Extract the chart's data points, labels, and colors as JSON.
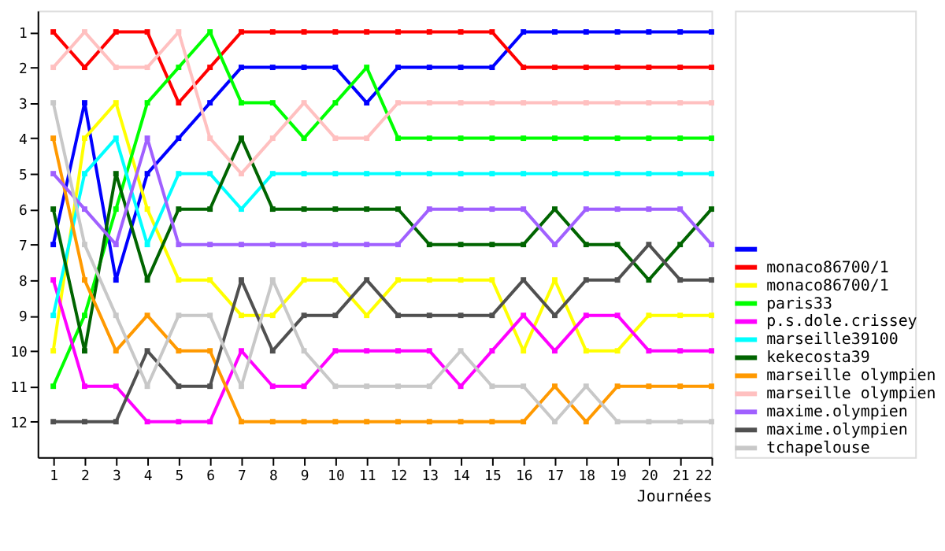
{
  "chart_data": {
    "type": "line",
    "xlabel": "Journées",
    "x": [
      1,
      2,
      3,
      4,
      5,
      6,
      7,
      8,
      9,
      10,
      11,
      12,
      13,
      14,
      15,
      16,
      17,
      18,
      19,
      20,
      21,
      22
    ],
    "xlim": [
      0.5,
      22
    ],
    "xticks": [
      1,
      2,
      3,
      4,
      5,
      6,
      7,
      8,
      9,
      10,
      11,
      12,
      13,
      14,
      15,
      16,
      17,
      18,
      19,
      20,
      21,
      22
    ],
    "ylim": [
      13,
      0.4
    ],
    "yticks": [
      1,
      2,
      3,
      4,
      5,
      6,
      7,
      8,
      9,
      10,
      11,
      12
    ],
    "grid": false,
    "legend": "right",
    "marker": "square",
    "line_style": "solid",
    "series": [
      {
        "color": "#0000ff",
        "values": [
          7,
          3,
          8,
          5,
          4,
          3,
          2,
          2,
          2,
          2,
          3,
          2,
          2,
          2,
          2,
          1,
          1,
          1,
          1,
          1,
          1,
          1
        ]
      },
      {
        "name": "monaco86700/1",
        "color": "#ff0000",
        "values": [
          1,
          2,
          1,
          1,
          3,
          2,
          1,
          1,
          1,
          1,
          1,
          1,
          1,
          1,
          1,
          2,
          2,
          2,
          2,
          2,
          2,
          2
        ]
      },
      {
        "name": "monaco86700/1",
        "color": "#ffff00",
        "values": [
          10,
          4,
          3,
          6,
          8,
          8,
          9,
          9,
          8,
          8,
          9,
          8,
          8,
          8,
          8,
          10,
          8,
          10,
          10,
          9,
          9,
          9
        ]
      },
      {
        "name": "paris33",
        "color": "#00ff00",
        "values": [
          11,
          9,
          6,
          3,
          2,
          1,
          3,
          3,
          4,
          3,
          2,
          4,
          4,
          4,
          4,
          4,
          4,
          4,
          4,
          4,
          4,
          4
        ]
      },
      {
        "name": "p.s.dole.crissey",
        "color": "#ff00ff",
        "values": [
          8,
          11,
          11,
          12,
          12,
          12,
          10,
          11,
          11,
          10,
          10,
          10,
          10,
          11,
          10,
          9,
          10,
          9,
          9,
          10,
          10,
          10
        ]
      },
      {
        "name": "marseille39100",
        "color": "#00ffff",
        "values": [
          9,
          5,
          4,
          7,
          5,
          5,
          6,
          5,
          5,
          5,
          5,
          5,
          5,
          5,
          5,
          5,
          5,
          5,
          5,
          5,
          5,
          5
        ]
      },
      {
        "name": "kekecosta39",
        "color": "#006400",
        "values": [
          6,
          10,
          5,
          8,
          6,
          6,
          4,
          6,
          6,
          6,
          6,
          6,
          7,
          7,
          7,
          7,
          6,
          7,
          7,
          8,
          7,
          6
        ]
      },
      {
        "name": "marseille olympien",
        "color": "#ff9900",
        "values": [
          4,
          8,
          10,
          9,
          10,
          10,
          12,
          12,
          12,
          12,
          12,
          12,
          12,
          12,
          12,
          12,
          11,
          12,
          11,
          11,
          11,
          11
        ]
      },
      {
        "name": "marseille olympien",
        "color": "#ffc0c0",
        "values": [
          2,
          1,
          2,
          2,
          1,
          4,
          5,
          4,
          3,
          4,
          4,
          3,
          3,
          3,
          3,
          3,
          3,
          3,
          3,
          3,
          3,
          3
        ]
      },
      {
        "name": "maxime.olympien",
        "color": "#a060ff",
        "values": [
          5,
          6,
          7,
          4,
          7,
          7,
          7,
          7,
          7,
          7,
          7,
          7,
          6,
          6,
          6,
          6,
          7,
          6,
          6,
          6,
          6,
          7
        ]
      },
      {
        "name": "maxime.olympien",
        "color": "#505050",
        "values": [
          12,
          12,
          12,
          10,
          11,
          11,
          8,
          10,
          9,
          9,
          8,
          9,
          9,
          9,
          9,
          8,
          9,
          8,
          8,
          7,
          8,
          8
        ]
      },
      {
        "name": "tchapelouse",
        "color": "#c8c8c8",
        "values": [
          3,
          7,
          9,
          11,
          9,
          9,
          11,
          8,
          10,
          11,
          11,
          11,
          11,
          10,
          11,
          11,
          12,
          11,
          12,
          12,
          12,
          12
        ]
      }
    ]
  }
}
